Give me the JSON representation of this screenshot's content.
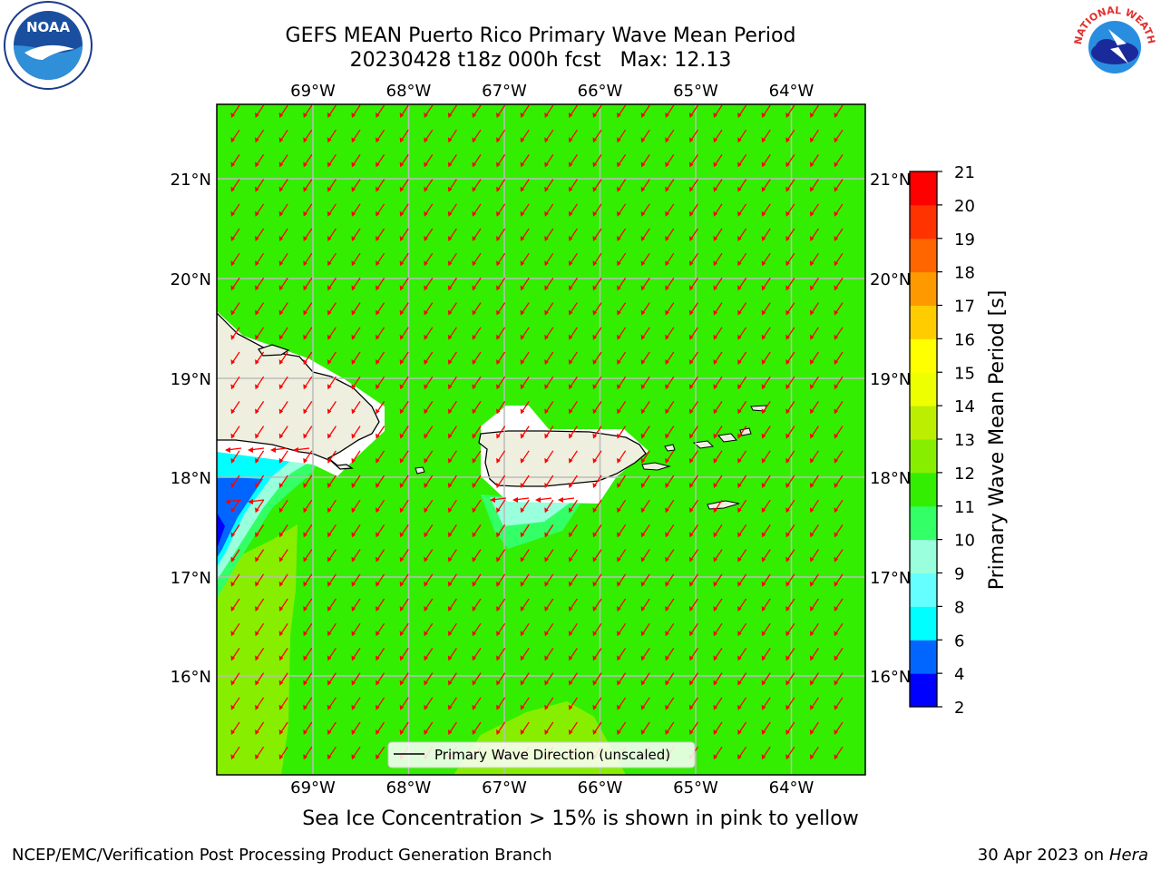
{
  "title": {
    "line1": "GEFS MEAN Puerto Rico Primary Wave Mean Period",
    "line2": "20230428 t18z 000h fcst   Max: 12.13"
  },
  "axes": {
    "lon_labels": [
      "69°W",
      "68°W",
      "67°W",
      "66°W",
      "65°W",
      "64°W"
    ],
    "lat_labels": [
      "21°N",
      "20°N",
      "19°N",
      "18°N",
      "17°N",
      "16°N"
    ]
  },
  "colorbar": {
    "label": "Primary Wave Mean Period [s]",
    "ticks": [
      "2",
      "4",
      "6",
      "8",
      "9",
      "10",
      "11",
      "12",
      "13",
      "14",
      "15",
      "16",
      "17",
      "18",
      "19",
      "20",
      "21"
    ],
    "colors": [
      "#0000ff",
      "#0066ff",
      "#00ffff",
      "#66ffff",
      "#99ffdd",
      "#33ff66",
      "#33ee00",
      "#88ee00",
      "#bbee00",
      "#eeff00",
      "#ffff00",
      "#ffcc00",
      "#ff9900",
      "#ff6600",
      "#ff3300",
      "#ff0000"
    ]
  },
  "legend": {
    "label": "Primary Wave Direction (unscaled)"
  },
  "caption": "Sea Ice Concentration > 15% is shown in pink to yellow",
  "footer": {
    "left": "NCEP/EMC/Verification Post Processing Product Generation Branch",
    "right_prefix": "30 Apr 2023 on ",
    "right_host": "Hera"
  },
  "logos": {
    "left": "NOAA",
    "right": "NATIONAL WEATHER SERVICE"
  },
  "colors": {
    "ocean": "#33ee00",
    "land": "#efefe0",
    "grid": "#bbbbbb",
    "arrow": "#ff0000"
  }
}
